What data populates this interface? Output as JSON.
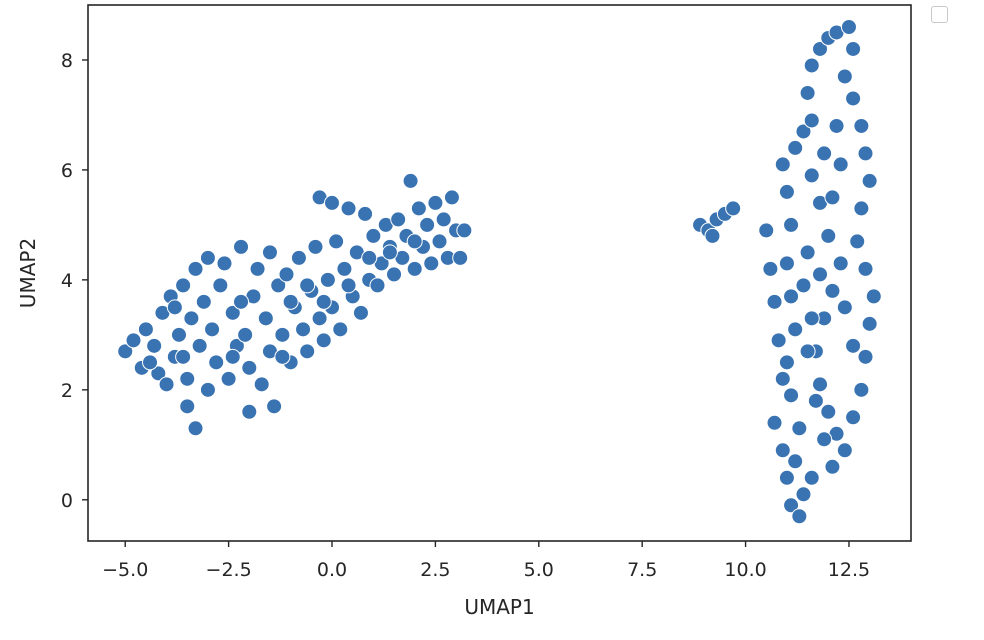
{
  "chart_data": {
    "type": "scatter",
    "title": "",
    "xlabel": "UMAP1",
    "ylabel": "UMAP2",
    "xlim": [
      -5.9,
      14.0
    ],
    "ylim": [
      -0.75,
      9.0
    ],
    "xticks": [
      -5.0,
      -2.5,
      0.0,
      2.5,
      5.0,
      7.5,
      10.0,
      12.5
    ],
    "xtick_labels": [
      "−5.0",
      "−2.5",
      "0.0",
      "2.5",
      "5.0",
      "7.5",
      "10.0",
      "12.5"
    ],
    "yticks": [
      0,
      2,
      4,
      6,
      8
    ],
    "ytick_labels": [
      "0",
      "2",
      "4",
      "6",
      "8"
    ],
    "grid": false,
    "legend": "top-right, empty",
    "marker_color": "#3a73b2",
    "marker_edge": "#ffffff",
    "points": [
      [
        -5.0,
        2.7
      ],
      [
        -4.8,
        2.9
      ],
      [
        -4.6,
        2.4
      ],
      [
        -4.5,
        3.1
      ],
      [
        -4.3,
        2.8
      ],
      [
        -4.2,
        2.3
      ],
      [
        -4.1,
        3.4
      ],
      [
        -4.0,
        2.1
      ],
      [
        -3.9,
        3.7
      ],
      [
        -3.8,
        2.6
      ],
      [
        -3.7,
        3.0
      ],
      [
        -3.6,
        3.9
      ],
      [
        -3.5,
        2.2
      ],
      [
        -3.5,
        1.7
      ],
      [
        -3.4,
        3.3
      ],
      [
        -3.3,
        4.2
      ],
      [
        -3.3,
        1.3
      ],
      [
        -3.2,
        2.8
      ],
      [
        -3.1,
        3.6
      ],
      [
        -3.0,
        2.0
      ],
      [
        -3.0,
        4.4
      ],
      [
        -2.9,
        3.1
      ],
      [
        -2.8,
        2.5
      ],
      [
        -2.7,
        3.9
      ],
      [
        -2.6,
        4.3
      ],
      [
        -2.5,
        2.2
      ],
      [
        -2.4,
        3.4
      ],
      [
        -2.3,
        2.8
      ],
      [
        -2.2,
        4.6
      ],
      [
        -2.1,
        3.0
      ],
      [
        -2.0,
        2.4
      ],
      [
        -2.0,
        1.6
      ],
      [
        -1.9,
        3.7
      ],
      [
        -1.8,
        4.2
      ],
      [
        -1.7,
        2.1
      ],
      [
        -1.6,
        3.3
      ],
      [
        -1.5,
        4.5
      ],
      [
        -1.5,
        2.7
      ],
      [
        -1.4,
        1.7
      ],
      [
        -1.3,
        3.9
      ],
      [
        -1.2,
        3.0
      ],
      [
        -1.1,
        4.1
      ],
      [
        -1.0,
        2.5
      ],
      [
        -0.9,
        3.5
      ],
      [
        -0.8,
        4.4
      ],
      [
        -0.7,
        3.1
      ],
      [
        -0.6,
        2.7
      ],
      [
        -0.5,
        3.8
      ],
      [
        -0.4,
        4.6
      ],
      [
        -0.3,
        5.5
      ],
      [
        -0.3,
        3.3
      ],
      [
        -0.2,
        2.9
      ],
      [
        -0.1,
        4.0
      ],
      [
        0.0,
        5.4
      ],
      [
        0.0,
        3.5
      ],
      [
        0.1,
        4.7
      ],
      [
        0.2,
        3.1
      ],
      [
        0.3,
        4.2
      ],
      [
        0.4,
        5.3
      ],
      [
        0.5,
        3.7
      ],
      [
        0.6,
        4.5
      ],
      [
        0.7,
        3.4
      ],
      [
        0.8,
        5.2
      ],
      [
        0.9,
        4.0
      ],
      [
        1.0,
        4.8
      ],
      [
        1.1,
        3.9
      ],
      [
        1.2,
        4.3
      ],
      [
        1.3,
        5.0
      ],
      [
        1.4,
        4.6
      ],
      [
        1.5,
        4.1
      ],
      [
        1.6,
        5.1
      ],
      [
        1.7,
        4.4
      ],
      [
        1.8,
        4.8
      ],
      [
        1.9,
        5.8
      ],
      [
        2.0,
        4.2
      ],
      [
        2.1,
        5.3
      ],
      [
        2.2,
        4.6
      ],
      [
        2.3,
        5.0
      ],
      [
        2.4,
        4.3
      ],
      [
        2.5,
        5.4
      ],
      [
        2.6,
        4.7
      ],
      [
        2.7,
        5.1
      ],
      [
        2.8,
        4.4
      ],
      [
        2.9,
        5.5
      ],
      [
        3.0,
        4.9
      ],
      [
        3.1,
        4.4
      ],
      [
        3.2,
        4.9
      ],
      [
        -3.8,
        3.5
      ],
      [
        -2.2,
        3.6
      ],
      [
        -1.0,
        3.6
      ],
      [
        -0.6,
        3.9
      ],
      [
        0.4,
        3.9
      ],
      [
        1.4,
        4.5
      ],
      [
        -4.4,
        2.5
      ],
      [
        -3.6,
        2.6
      ],
      [
        -2.4,
        2.6
      ],
      [
        -1.2,
        2.6
      ],
      [
        -0.2,
        3.6
      ],
      [
        0.9,
        4.4
      ],
      [
        2.0,
        4.7
      ],
      [
        8.9,
        5.0
      ],
      [
        9.1,
        4.9
      ],
      [
        9.3,
        5.1
      ],
      [
        9.5,
        5.2
      ],
      [
        9.7,
        5.3
      ],
      [
        9.2,
        4.8
      ],
      [
        10.5,
        4.9
      ],
      [
        10.6,
        4.2
      ],
      [
        10.7,
        3.6
      ],
      [
        10.8,
        2.9
      ],
      [
        10.9,
        2.2
      ],
      [
        10.7,
        1.4
      ],
      [
        10.9,
        0.9
      ],
      [
        11.0,
        0.4
      ],
      [
        11.1,
        -0.1
      ],
      [
        11.3,
        -0.3
      ],
      [
        11.4,
        0.1
      ],
      [
        11.2,
        0.7
      ],
      [
        11.3,
        1.3
      ],
      [
        11.1,
        1.9
      ],
      [
        11.0,
        2.5
      ],
      [
        11.2,
        3.1
      ],
      [
        11.1,
        3.7
      ],
      [
        11.0,
        4.3
      ],
      [
        11.1,
        5.0
      ],
      [
        10.9,
        6.1
      ],
      [
        11.0,
        5.6
      ],
      [
        11.2,
        6.4
      ],
      [
        11.4,
        6.7
      ],
      [
        11.6,
        6.9
      ],
      [
        11.5,
        7.4
      ],
      [
        11.6,
        7.9
      ],
      [
        11.8,
        8.2
      ],
      [
        12.0,
        8.4
      ],
      [
        12.2,
        8.5
      ],
      [
        12.5,
        8.6
      ],
      [
        12.6,
        8.2
      ],
      [
        12.4,
        7.7
      ],
      [
        12.6,
        7.3
      ],
      [
        12.8,
        6.8
      ],
      [
        12.9,
        6.3
      ],
      [
        13.0,
        5.8
      ],
      [
        12.8,
        5.3
      ],
      [
        12.7,
        4.7
      ],
      [
        12.9,
        4.2
      ],
      [
        13.1,
        3.7
      ],
      [
        13.0,
        3.2
      ],
      [
        12.9,
        2.6
      ],
      [
        12.8,
        2.0
      ],
      [
        12.6,
        1.5
      ],
      [
        12.4,
        0.9
      ],
      [
        12.2,
        1.2
      ],
      [
        12.0,
        1.6
      ],
      [
        11.8,
        2.1
      ],
      [
        11.7,
        2.7
      ],
      [
        11.9,
        3.3
      ],
      [
        12.1,
        3.8
      ],
      [
        12.3,
        4.3
      ],
      [
        12.0,
        4.8
      ],
      [
        11.8,
        5.4
      ],
      [
        11.6,
        5.9
      ],
      [
        11.9,
        6.3
      ],
      [
        12.2,
        6.8
      ],
      [
        12.3,
        6.1
      ],
      [
        12.1,
        5.5
      ],
      [
        11.5,
        4.5
      ],
      [
        11.4,
        3.9
      ],
      [
        11.6,
        3.3
      ],
      [
        11.5,
        2.7
      ],
      [
        11.7,
        1.8
      ],
      [
        11.9,
        1.1
      ],
      [
        12.1,
        0.6
      ],
      [
        11.6,
        0.4
      ],
      [
        11.8,
        4.1
      ],
      [
        12.4,
        3.5
      ],
      [
        12.6,
        2.8
      ]
    ]
  }
}
